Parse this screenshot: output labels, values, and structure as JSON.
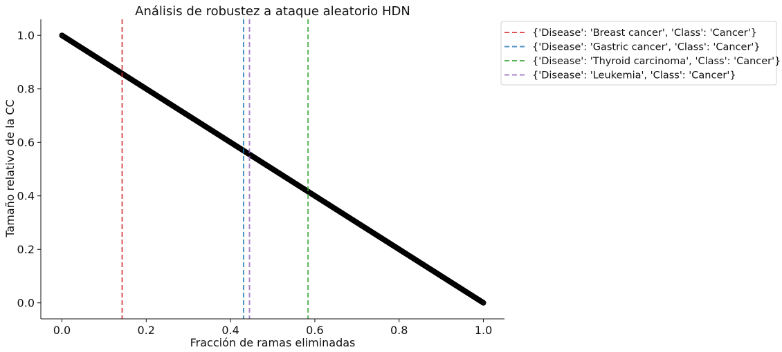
{
  "chart_data": {
    "type": "scatter",
    "title": "Análisis de robustez a ataque aleatorio HDN",
    "xlabel": "Fracción de ramas eliminadas",
    "ylabel": "Tamaño relativo de la CC",
    "xlim": [
      -0.05,
      1.05
    ],
    "ylim": [
      -0.06,
      1.06
    ],
    "xticks": [
      0.0,
      0.2,
      0.4,
      0.6,
      0.8,
      1.0
    ],
    "xtick_labels": [
      "0.0",
      "0.2",
      "0.4",
      "0.6",
      "0.8",
      "1.0"
    ],
    "yticks": [
      0.0,
      0.2,
      0.4,
      0.6,
      0.8,
      1.0
    ],
    "ytick_labels": [
      "0.0",
      "0.2",
      "0.4",
      "0.6",
      "0.8",
      "1.0"
    ],
    "grid": false,
    "legend_position": "outside-top-right",
    "scatter": {
      "marker": "open-circle",
      "edge_color": "#000000",
      "x_start": 0.0,
      "x_end": 1.0,
      "relation": "y = 1 - x",
      "point_count": 1000
    },
    "vlines": [
      {
        "x": 0.143,
        "color": "#d62728",
        "label": "{'Disease': 'Breast cancer', 'Class': 'Cancer'}"
      },
      {
        "x": 0.431,
        "color": "#1f77b4",
        "label": "{'Disease': 'Gastric cancer', 'Class': 'Cancer'}"
      },
      {
        "x": 0.584,
        "color": "#2ca02c",
        "label": "{'Disease': 'Thyroid carcinoma', 'Class': 'Cancer'}"
      },
      {
        "x": 0.445,
        "color": "#9467bd",
        "label": "{'Disease': 'Leukemia', 'Class': 'Cancer'}"
      }
    ]
  }
}
